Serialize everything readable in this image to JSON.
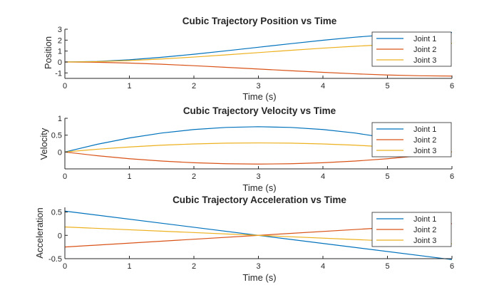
{
  "colors": {
    "joint1": "#0072BD",
    "joint2": "#D95319",
    "joint3": "#EDB120",
    "axis": "#262626",
    "background": "#ffffff"
  },
  "chart_data": [
    {
      "type": "line",
      "title": "Cubic Trajectory Position vs Time",
      "xlabel": "Time (s)",
      "ylabel": "Position",
      "xlim": [
        0,
        6
      ],
      "ylim": [
        -1.5,
        3
      ],
      "xticks": [
        0,
        1,
        2,
        3,
        4,
        5,
        6
      ],
      "yticks": [
        -1,
        0,
        1,
        2,
        3
      ],
      "grid": false,
      "legend_position": "right",
      "x": [
        0,
        0.5,
        1,
        1.5,
        2,
        2.5,
        3,
        3.5,
        4,
        4.5,
        5,
        5.5,
        6
      ],
      "series": [
        {
          "name": "Joint 1",
          "color": "joint1",
          "values": [
            0,
            0.054,
            0.204,
            0.431,
            0.711,
            1.024,
            1.35,
            1.676,
            1.989,
            2.269,
            2.496,
            2.646,
            2.7
          ]
        },
        {
          "name": "Joint 2",
          "color": "joint2",
          "values": [
            0,
            -0.026,
            -0.097,
            -0.205,
            -0.339,
            -0.488,
            -0.643,
            -0.798,
            -0.947,
            -1.081,
            -1.189,
            -1.26,
            -1.286
          ]
        },
        {
          "name": "Joint 3",
          "color": "joint3",
          "values": [
            0,
            0.035,
            0.13,
            0.275,
            0.453,
            0.652,
            0.86,
            1.068,
            1.267,
            1.445,
            1.59,
            1.685,
            1.72
          ]
        }
      ]
    },
    {
      "type": "line",
      "title": "Cubic Trajectory Velocity vs Time",
      "xlabel": "Time (s)",
      "ylabel": "Velocity",
      "xlim": [
        0,
        6
      ],
      "ylim": [
        -0.5,
        1
      ],
      "xticks": [
        0,
        1,
        2,
        3,
        4,
        5,
        6
      ],
      "yticks": [
        0,
        0.5,
        1
      ],
      "grid": false,
      "legend_position": "right",
      "x": [
        0,
        0.5,
        1,
        1.5,
        2,
        2.5,
        3,
        3.5,
        4,
        4.5,
        5,
        5.5,
        6
      ],
      "series": [
        {
          "name": "Joint 1",
          "color": "joint1",
          "values": [
            0,
            0.2292,
            0.4167,
            0.5625,
            0.6667,
            0.7292,
            0.75,
            0.7292,
            0.6667,
            0.5625,
            0.4167,
            0.2292,
            0
          ]
        },
        {
          "name": "Joint 2",
          "color": "joint2",
          "values": [
            0,
            -0.1091,
            -0.1984,
            -0.2679,
            -0.3175,
            -0.3472,
            -0.3571,
            -0.3472,
            -0.3175,
            -0.2679,
            -0.1984,
            -0.1091,
            0
          ]
        },
        {
          "name": "Joint 3",
          "color": "joint3",
          "values": [
            0,
            0.0825,
            0.15,
            0.2025,
            0.24,
            0.2625,
            0.27,
            0.2625,
            0.24,
            0.2025,
            0.15,
            0.0825,
            0
          ]
        }
      ]
    },
    {
      "type": "line",
      "title": "Cubic Trajectory Acceleration vs Time",
      "xlabel": "Time (s)",
      "ylabel": "Acceleration",
      "xlim": [
        0,
        6
      ],
      "ylim": [
        -0.5,
        0.6
      ],
      "xticks": [
        0,
        1,
        2,
        3,
        4,
        5,
        6
      ],
      "yticks": [
        -0.5,
        0,
        0.5
      ],
      "grid": false,
      "legend_position": "right",
      "x": [
        0,
        6
      ],
      "series": [
        {
          "name": "Joint 1",
          "color": "joint1",
          "values": [
            0.52,
            -0.52
          ]
        },
        {
          "name": "Joint 2",
          "color": "joint2",
          "values": [
            -0.25,
            0.25
          ]
        },
        {
          "name": "Joint 3",
          "color": "joint3",
          "values": [
            0.18,
            -0.18
          ]
        }
      ]
    }
  ]
}
